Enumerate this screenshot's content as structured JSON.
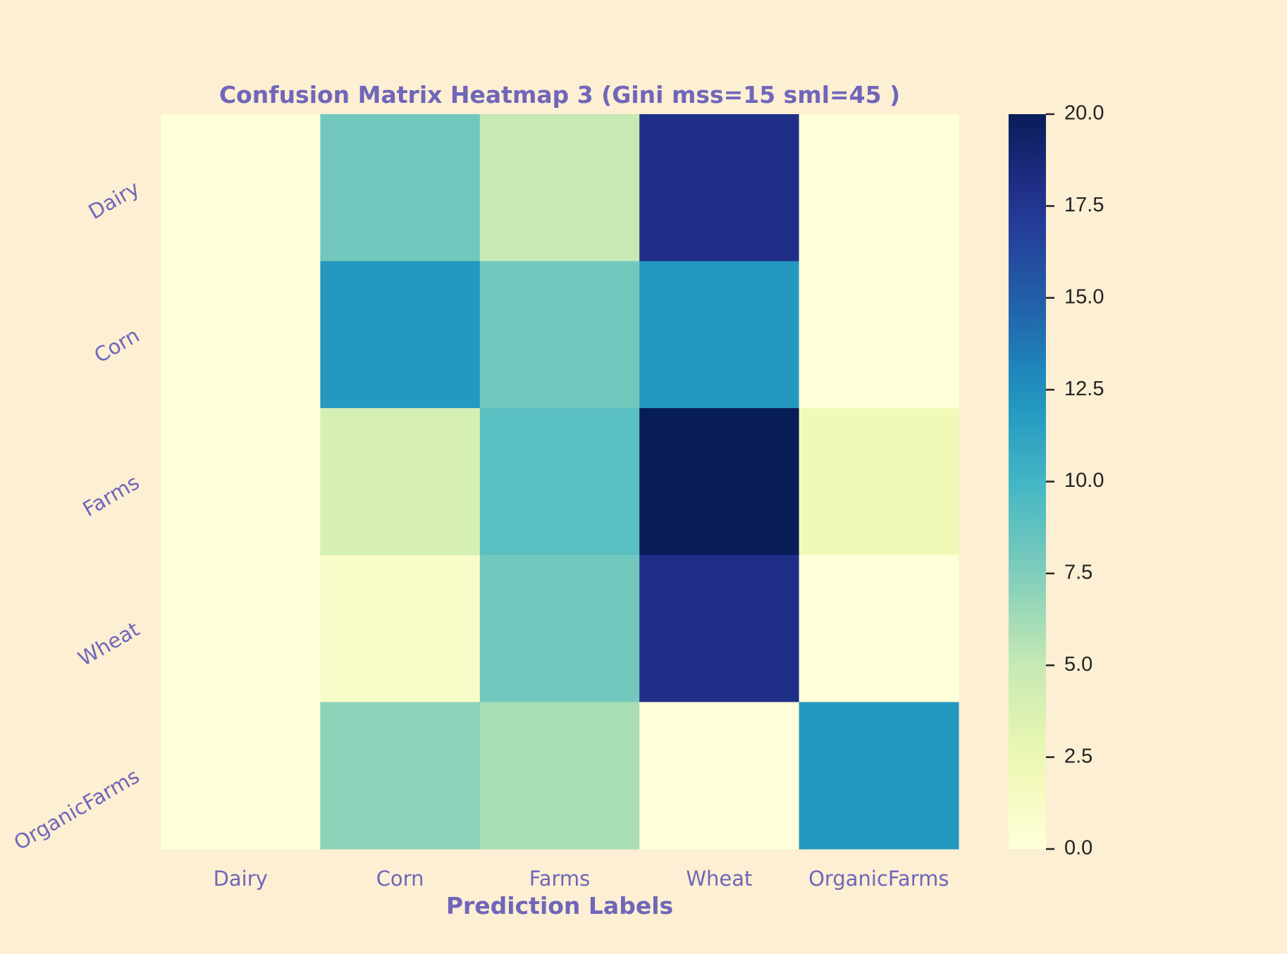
{
  "colors": {
    "background": "#fcefd3",
    "label": "#7066b9",
    "tick_text": "#222222",
    "colormap": "YlGnBu"
  },
  "chart_data": {
    "type": "heatmap",
    "title": "Confusion Matrix Heatmap 3 (Gini mss=15 sml=45 )",
    "xlabel": "Prediction Labels",
    "ylabel": "",
    "x_categories": [
      "Dairy",
      "Corn",
      "Farms",
      "Wheat",
      "OrganicFarms"
    ],
    "y_categories": [
      "Dairy",
      "Corn",
      "Farms",
      "Wheat",
      "OrganicFarms"
    ],
    "values": [
      [
        0,
        8,
        5,
        18,
        0
      ],
      [
        0,
        12,
        8,
        12,
        0
      ],
      [
        0,
        4,
        9,
        20,
        2
      ],
      [
        0,
        1,
        8,
        18,
        0
      ],
      [
        0,
        7,
        6,
        0,
        12
      ]
    ],
    "colorbar": {
      "range": [
        0,
        20
      ],
      "ticks": [
        "0.0",
        "2.5",
        "5.0",
        "7.5",
        "10.0",
        "12.5",
        "15.0",
        "17.5",
        "20.0"
      ]
    },
    "grid": false,
    "legend": "colorbar-right"
  }
}
